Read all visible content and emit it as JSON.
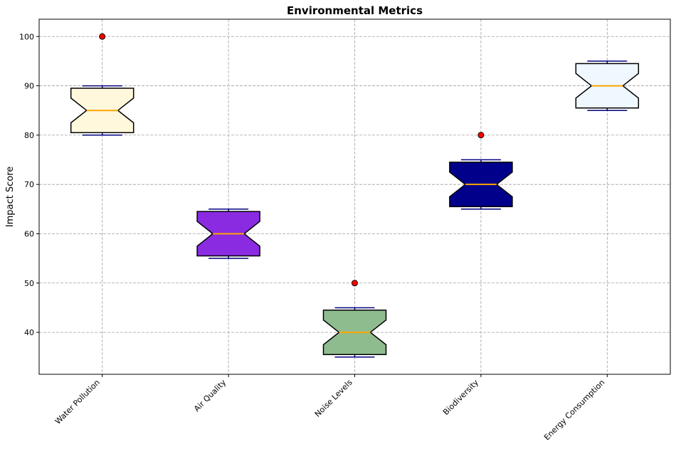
{
  "chart_data": {
    "type": "boxplot",
    "title": "Environmental Metrics",
    "xlabel": "",
    "ylabel": "Impact Score",
    "ylim": [
      31.5,
      103.5
    ],
    "yticks": [
      40,
      50,
      60,
      70,
      80,
      90,
      100
    ],
    "grid": true,
    "notched": true,
    "categories": [
      "Water Pollution",
      "Air Quality",
      "Noise Levels",
      "Biodiversity",
      "Energy Consumption"
    ],
    "boxes": [
      {
        "name": "Water Pollution",
        "whisker_low": 80,
        "q1": 82.5,
        "median": 85,
        "q3": 87.5,
        "whisker_high": 90,
        "notch_low": 80.5,
        "notch_high": 89.5,
        "outliers": [
          100
        ],
        "color": "#fff8dc"
      },
      {
        "name": "Air Quality",
        "whisker_low": 55,
        "q1": 57.5,
        "median": 60,
        "q3": 62.5,
        "whisker_high": 65,
        "notch_low": 55.5,
        "notch_high": 64.5,
        "outliers": [],
        "color": "#8a2be2"
      },
      {
        "name": "Noise Levels",
        "whisker_low": 35,
        "q1": 37.5,
        "median": 40,
        "q3": 42.5,
        "whisker_high": 45,
        "notch_low": 35.5,
        "notch_high": 44.5,
        "outliers": [
          50
        ],
        "color": "#8fbc8f"
      },
      {
        "name": "Biodiversity",
        "whisker_low": 65,
        "q1": 67.5,
        "median": 70,
        "q3": 72.5,
        "whisker_high": 75,
        "notch_low": 65.5,
        "notch_high": 74.5,
        "outliers": [
          80
        ],
        "color": "#00008b"
      },
      {
        "name": "Energy Consumption",
        "whisker_low": 85,
        "q1": 87.5,
        "median": 90,
        "q3": 92.5,
        "whisker_high": 95,
        "notch_low": 85.5,
        "notch_high": 94.5,
        "outliers": [],
        "color": "#f0f8ff"
      }
    ],
    "colors": {
      "whisker": "#000080",
      "median": "#ffa500",
      "outlier_fill": "#ff0000",
      "box_edge": "#000000",
      "grid": "#a0a0a0"
    }
  }
}
